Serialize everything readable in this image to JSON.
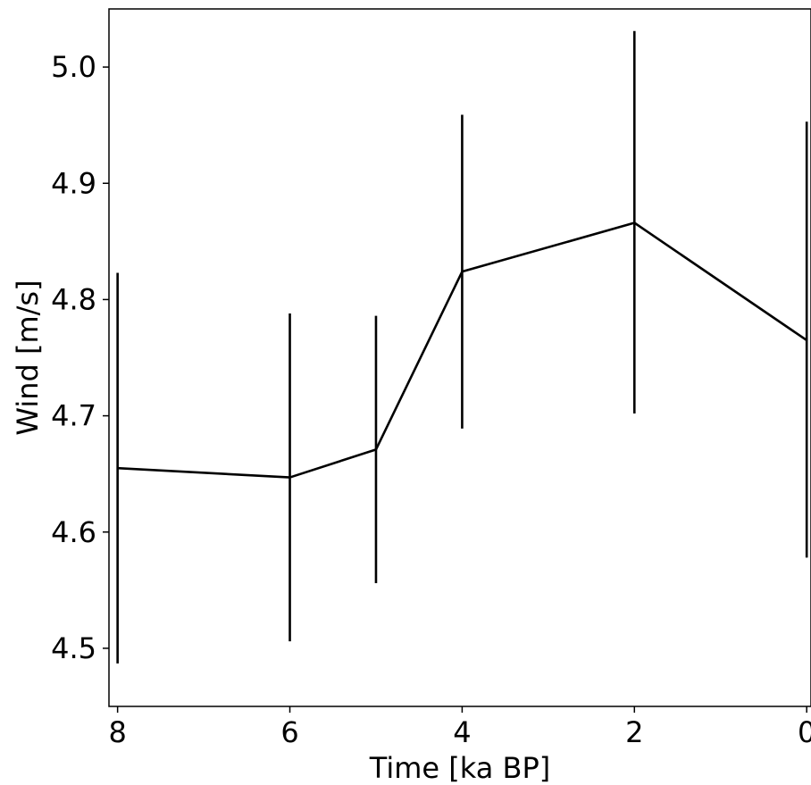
{
  "chart_data": {
    "type": "line",
    "title": "",
    "xlabel": "Time [ka BP]",
    "ylabel": "Wind [m/s]",
    "xlim": [
      8.1,
      -0.05
    ],
    "ylim": [
      4.45,
      5.05
    ],
    "x_inverted": true,
    "grid": false,
    "legend": "none",
    "x_ticks": [
      8,
      6,
      4,
      2,
      0
    ],
    "y_ticks": [
      4.5,
      4.6,
      4.7,
      4.8,
      4.9,
      5.0
    ],
    "x_tick_labels": [
      "8",
      "6",
      "4",
      "2",
      "0"
    ],
    "y_tick_labels": [
      "4.5",
      "4.6",
      "4.7",
      "4.8",
      "4.9",
      "5.0"
    ],
    "series": [
      {
        "x": [
          8,
          6,
          5,
          4,
          2,
          0
        ],
        "y": [
          4.655,
          4.647,
          4.671,
          4.824,
          4.866,
          4.765
        ],
        "y_low": [
          4.487,
          4.506,
          4.556,
          4.689,
          4.702,
          4.578
        ],
        "y_high": [
          4.823,
          4.788,
          4.786,
          4.959,
          5.031,
          4.953
        ],
        "color": "#000000",
        "errorbars": true
      }
    ]
  }
}
